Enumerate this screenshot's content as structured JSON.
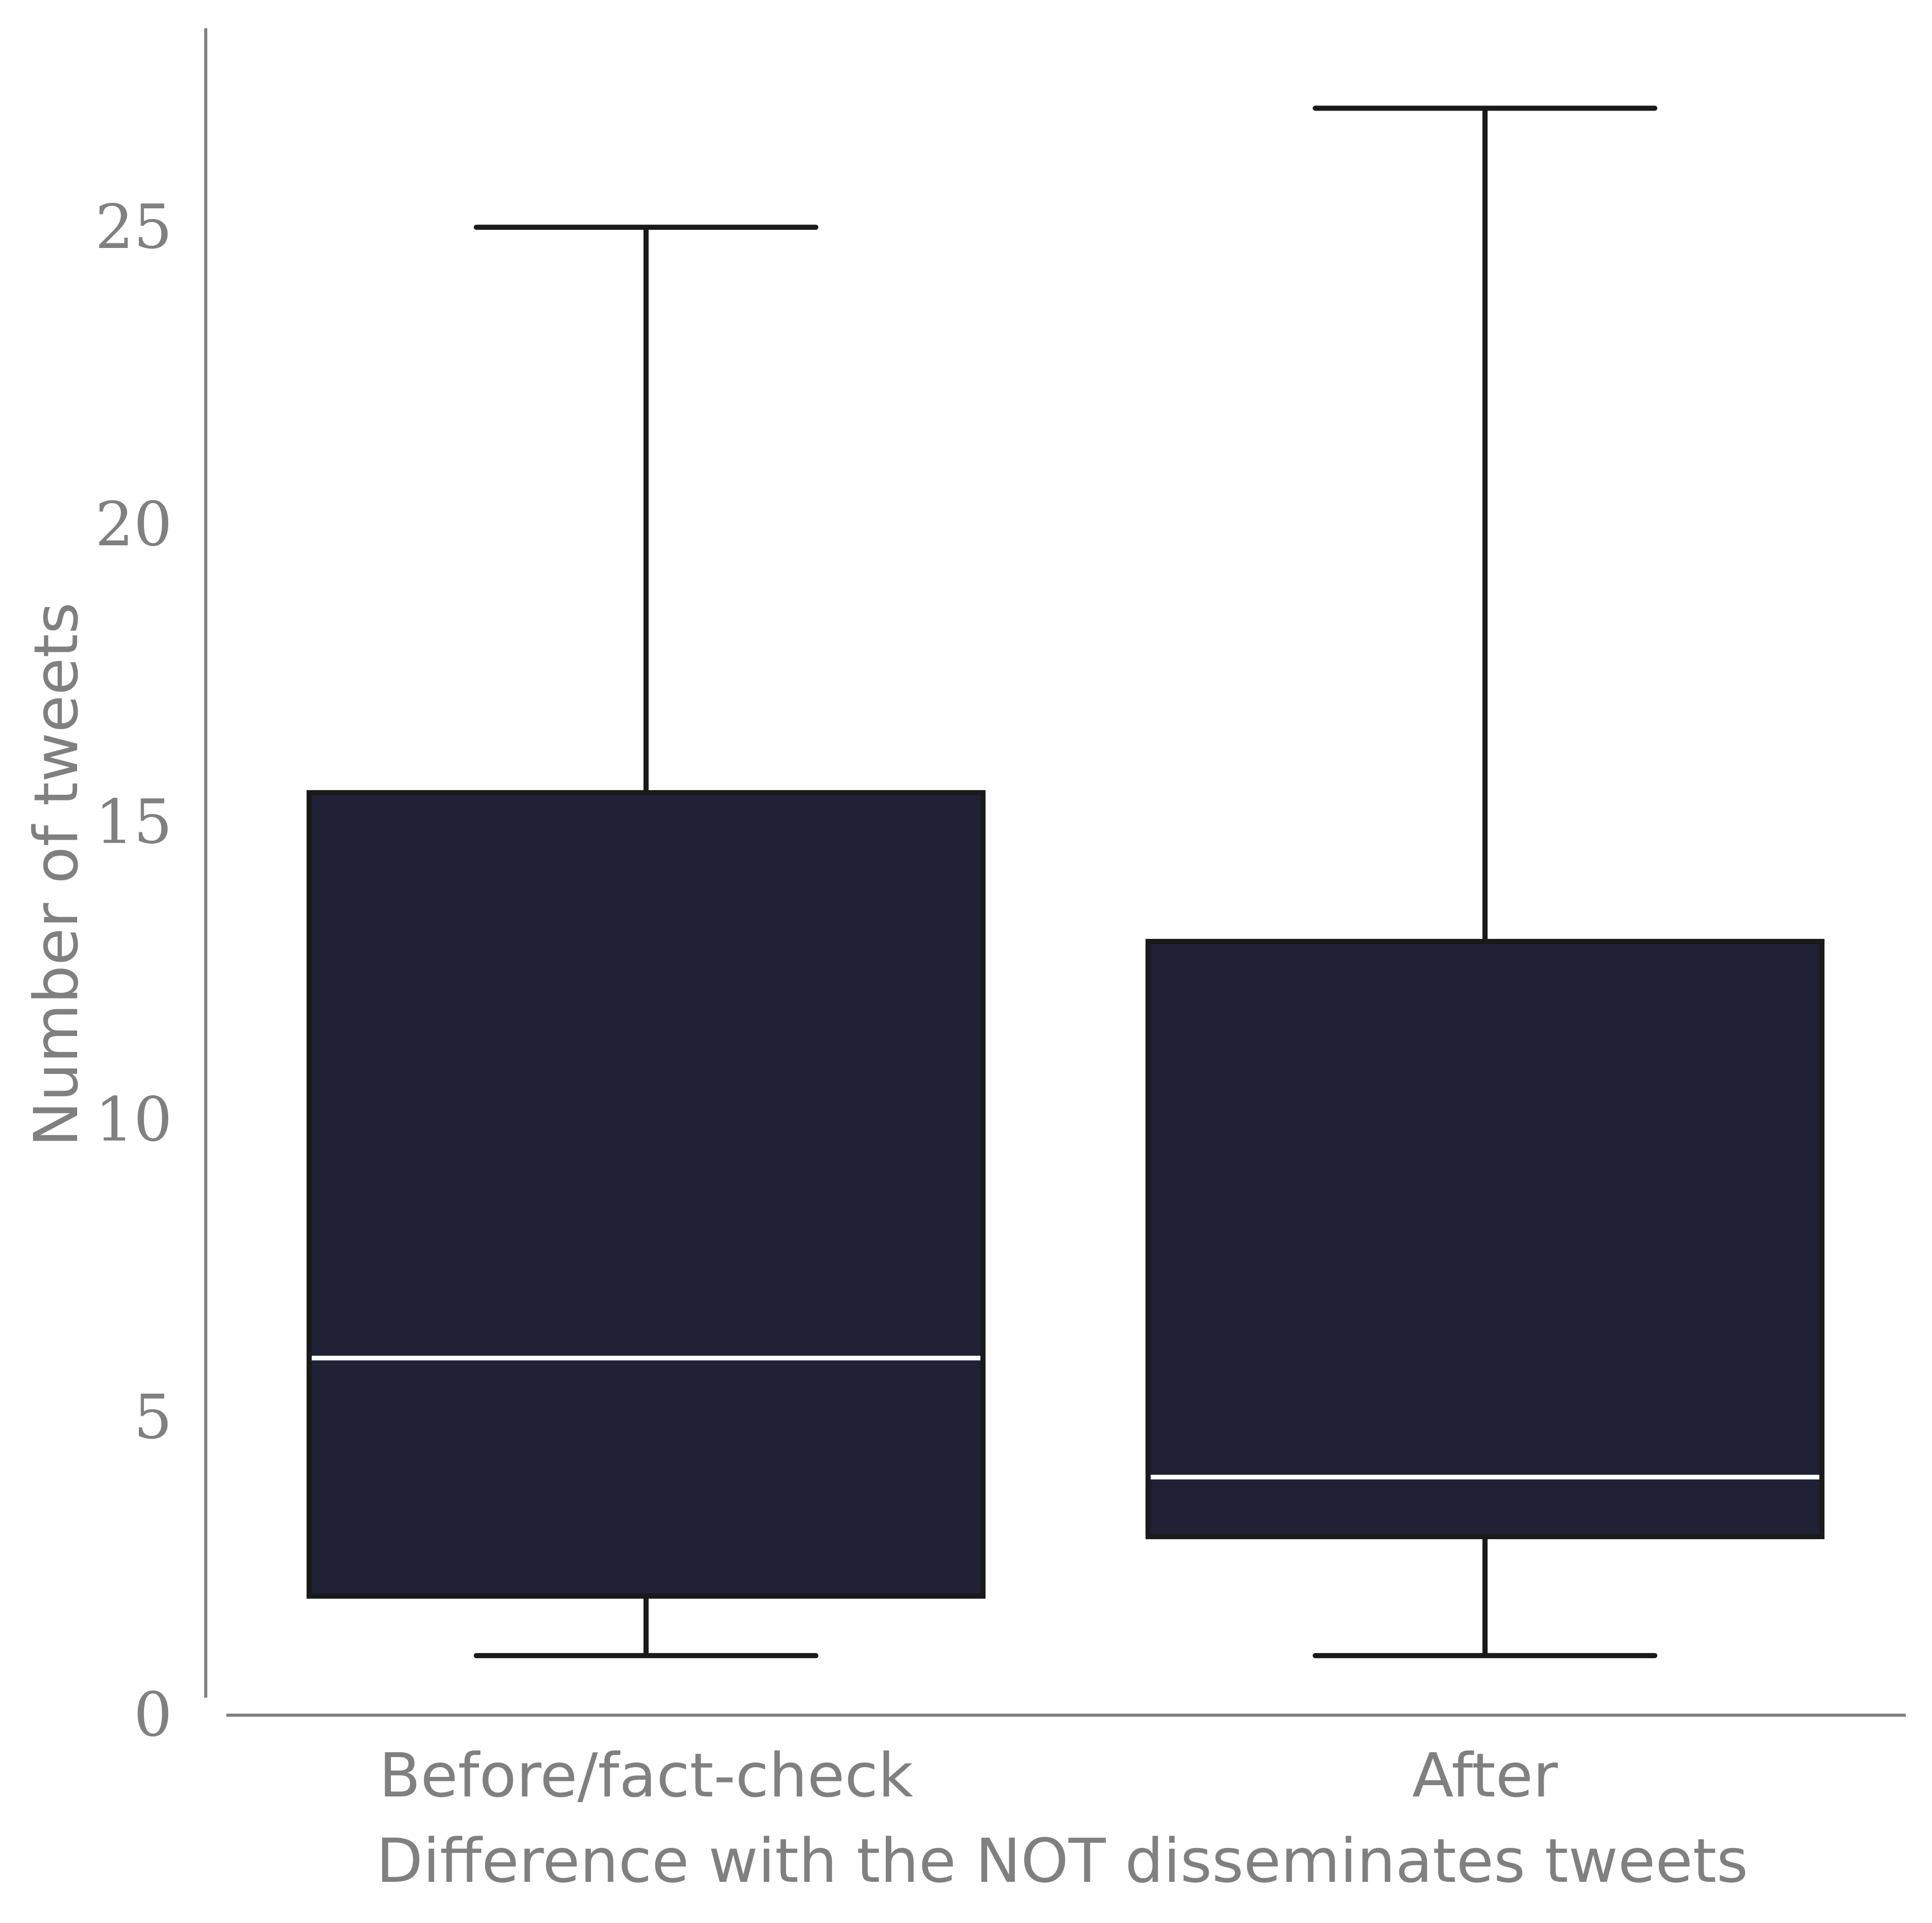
{
  "chart_data": {
    "type": "box",
    "title": "",
    "xlabel": "Difference with the NOT disseminates tweets",
    "ylabel": "Number of tweets",
    "ylim": [
      0,
      28.3
    ],
    "yticks": [
      0,
      5,
      10,
      15,
      20,
      25
    ],
    "grid": false,
    "categories": [
      "Before/fact-check",
      "After"
    ],
    "boxes": [
      {
        "category": "Before/fact-check",
        "whisker_low": 1,
        "q1": 2,
        "median": 6,
        "q3": 15.5,
        "whisker_high": 25
      },
      {
        "category": "After",
        "whisker_low": 1,
        "q1": 3,
        "median": 4,
        "q3": 13,
        "whisker_high": 27
      }
    ],
    "colors": {
      "box_fill": "#202135",
      "box_edge": "#1a1a1a",
      "median": "#ffffff",
      "axis": "#808080",
      "text": "#808080"
    }
  }
}
